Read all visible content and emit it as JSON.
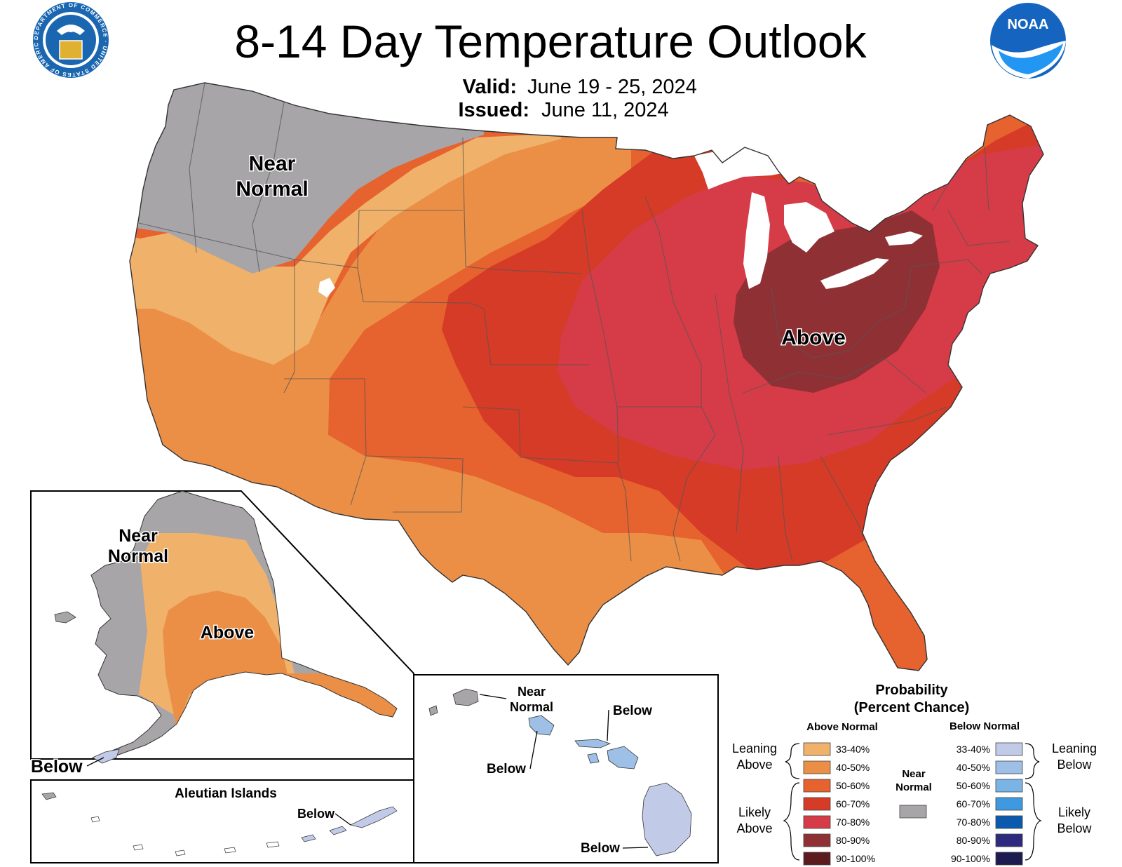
{
  "title": "8-14 Day Temperature Outlook",
  "valid_label": "Valid:",
  "valid_dates": "June 19 - 25, 2024",
  "issued_label": "Issued:",
  "issued_date": "June 11, 2024",
  "logos": {
    "commerce_ring_text": "DEPARTMENT OF COMMERCE · UNITED STATES OF AMERICA",
    "noaa_text": "NOAA"
  },
  "colors": {
    "near_normal": "#a7a5a8",
    "above_33_40": "#f0b26a",
    "above_40_50": "#ec8f46",
    "above_50_60": "#e6622e",
    "above_60_70": "#d53b26",
    "above_70_80": "#d63b48",
    "above_80_90": "#8f3134",
    "above_90_100": "#5c1c1f",
    "below_33_40": "#c1cbe8",
    "below_40_50": "#9ebfe6",
    "below_50_60": "#7ab4e6",
    "below_60_70": "#3e99e0",
    "below_70_80": "#0b5aad",
    "below_80_90": "#2e2a7e",
    "below_90_100": "#1d1b50"
  },
  "map_labels": {
    "conus_near_normal_line1": "Near",
    "conus_near_normal_line2": "Normal",
    "conus_above": "Above",
    "alaska_near_normal_line1": "Near",
    "alaska_near_normal_line2": "Normal",
    "alaska_above": "Above",
    "alaska_below": "Below",
    "aleutian_title": "Aleutian Islands",
    "aleutian_below": "Below",
    "hawaii_near_normal_line1": "Near",
    "hawaii_near_normal_line2": "Normal",
    "hawaii_below_maui": "Below",
    "hawaii_below_oahu": "Below",
    "hawaii_below_big_island": "Below"
  },
  "legend": {
    "title_line1": "Probability",
    "title_line2": "(Percent Chance)",
    "above_header": "Above Normal",
    "below_header": "Below Normal",
    "leaning_above_line1": "Leaning",
    "leaning_above_line2": "Above",
    "likely_above_line1": "Likely",
    "likely_above_line2": "Above",
    "leaning_below_line1": "Leaning",
    "leaning_below_line2": "Below",
    "likely_below_line1": "Likely",
    "likely_below_line2": "Below",
    "near_normal_line1": "Near",
    "near_normal_line2": "Normal",
    "ranges": [
      "33-40%",
      "40-50%",
      "50-60%",
      "60-70%",
      "70-80%",
      "80-90%",
      "90-100%"
    ]
  }
}
